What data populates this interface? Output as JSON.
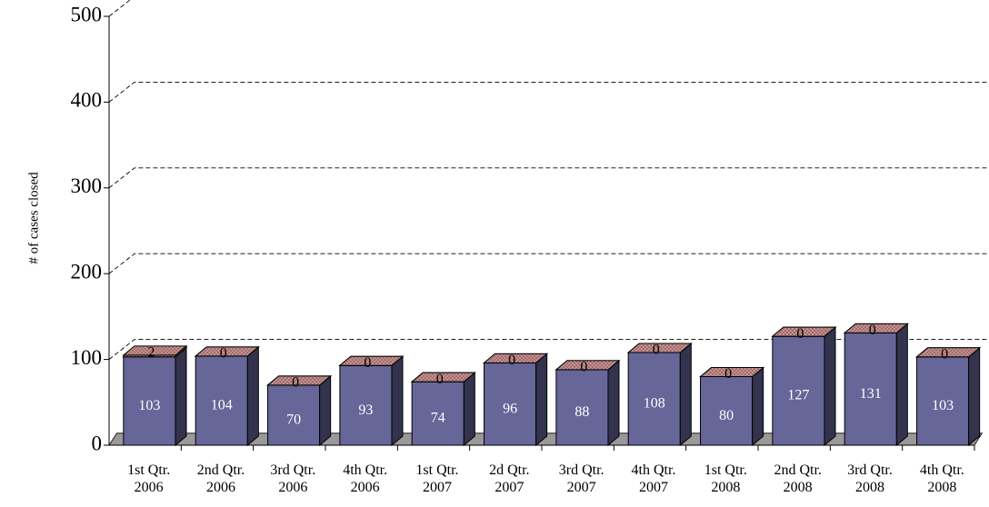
{
  "chart_data": {
    "type": "bar3d_stacked",
    "y_label": "# of cases closed",
    "categories": [
      "1st Qtr. 2006",
      "2nd Qtr. 2006",
      "3rd Qtr. 2006",
      "4th Qtr. 2006",
      "1st Qtr. 2007",
      "2d Qtr. 2007",
      "3rd Qtr. 2007",
      "4th Qtr. 2007",
      "1st Qtr. 2008",
      "2nd Qtr. 2008",
      "3rd Qtr. 2008",
      "4th Qtr. 2008"
    ],
    "series": [
      {
        "color": "#666699",
        "values": [
          103,
          104,
          70,
          93,
          74,
          96,
          88,
          108,
          80,
          127,
          131,
          103
        ]
      },
      {
        "color": "#cc9999",
        "values": [
          2,
          0,
          0,
          0,
          0,
          0,
          0,
          0,
          0,
          0,
          0,
          0
        ]
      }
    ],
    "ylim": [
      0,
      500
    ],
    "yticks": [
      0,
      100,
      200,
      300,
      400,
      500
    ],
    "grid": true
  }
}
